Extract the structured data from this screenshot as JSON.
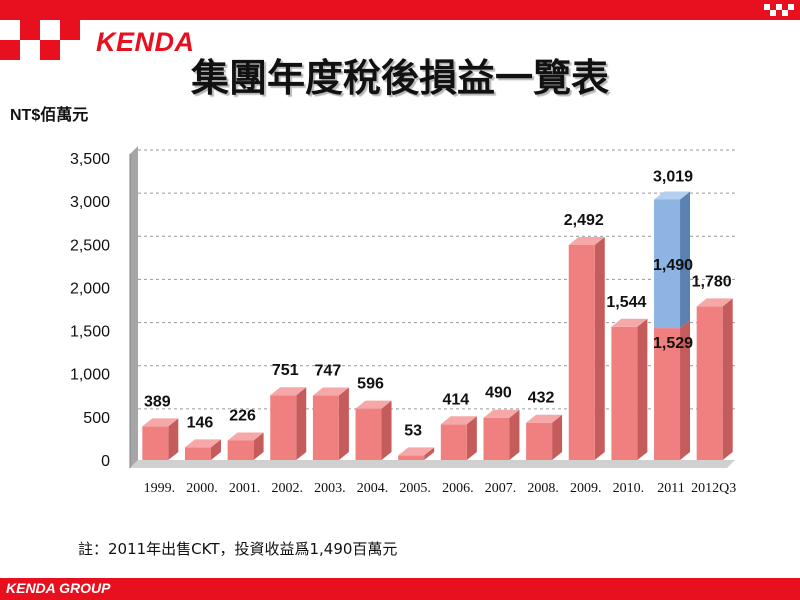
{
  "header": {
    "brand": "KENDA",
    "title": "集團年度稅後損益一覽表"
  },
  "unit_label": "NT$佰萬元",
  "footnote": "註：2011年出售CKT，投資收益爲1,490百萬元",
  "footer": {
    "text": "KENDA GROUP"
  },
  "colors": {
    "brand_red": "#e8101f",
    "bar": "#f08080",
    "bar_highlight": "#8db4e2"
  },
  "chart_data": {
    "type": "bar",
    "categories": [
      "1999.",
      "2000.",
      "2001.",
      "2002.",
      "2003.",
      "2004.",
      "2005.",
      "2006.",
      "2007.",
      "2008.",
      "2009.",
      "2010.",
      "2011",
      "2012Q3"
    ],
    "values": [
      389,
      146,
      226,
      751,
      747,
      596,
      53,
      414,
      490,
      432,
      2492,
      1544,
      1529,
      1780
    ],
    "value_labels": [
      "389",
      "146",
      "226",
      "751",
      "747",
      "596",
      "53",
      "414",
      "490",
      "432",
      "2,492",
      "1,544",
      "1,529",
      "1,780"
    ],
    "stacked_extra": {
      "category": "2011",
      "value": 1490,
      "label": "1,490",
      "total_label": "3,019",
      "total": 3019
    },
    "ylim": [
      0,
      3500
    ],
    "yticks": [
      0,
      500,
      1000,
      1500,
      2000,
      2500,
      3000,
      3500
    ],
    "ytick_labels": [
      "0",
      "500",
      "1,000",
      "1,500",
      "2,000",
      "2,500",
      "3,000",
      "3,500"
    ],
    "grid": true,
    "style": "3d",
    "title": "",
    "xlabel": "",
    "ylabel": "NT$佰萬元"
  }
}
